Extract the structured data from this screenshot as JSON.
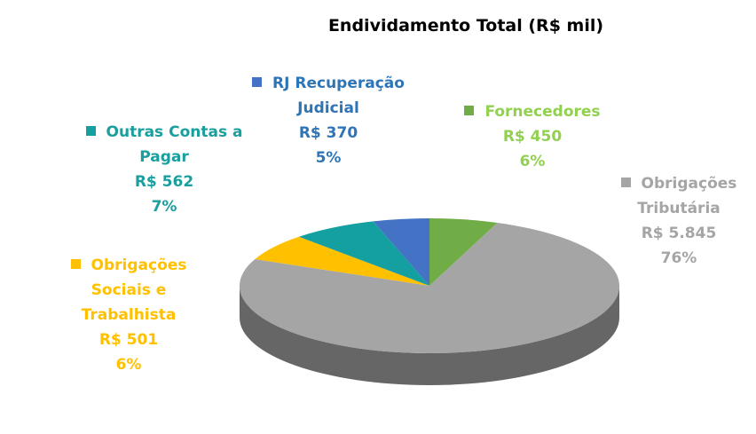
{
  "chart_data": {
    "type": "pie",
    "title": "Endividamento Total (R$ mil)",
    "categories": [
      "Fornecedores",
      "Obrigações Tributária",
      "Obrigações Sociais e Trabalhista",
      "Outras Contas a Pagar",
      "RJ Recuperação Judicial"
    ],
    "values": [
      450,
      5845,
      501,
      562,
      370
    ],
    "value_labels": [
      "R$ 450",
      "R$ 5.845",
      "R$ 501",
      "R$ 562",
      "R$ 370"
    ],
    "percent_labels": [
      "6%",
      "76%",
      "6%",
      "7%",
      "5%"
    ],
    "colors": [
      "#70ad47",
      "#a5a5a5",
      "#ffc000",
      "#14a0a0",
      "#4472c4"
    ],
    "label_colors": [
      "#92d050",
      "#a5a5a5",
      "#ffc000",
      "#1a9e9e",
      "#2e75b6"
    ],
    "three_d": true
  }
}
